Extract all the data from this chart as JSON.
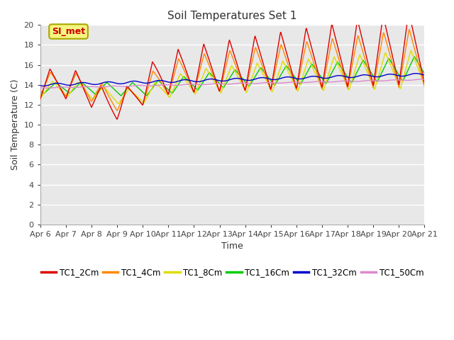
{
  "title": "Soil Temperatures Set 1",
  "xlabel": "Time",
  "ylabel": "Soil Temperature (C)",
  "ylim": [
    0,
    20
  ],
  "yticks": [
    0,
    2,
    4,
    6,
    8,
    10,
    12,
    14,
    16,
    18,
    20
  ],
  "x_labels": [
    "Apr 6",
    "Apr 7",
    "Apr 8",
    "Apr 9",
    "Apr 10",
    "Apr 11",
    "Apr 12",
    "Apr 13",
    "Apr 14",
    "Apr 15",
    "Apr 16",
    "Apr 17",
    "Apr 18",
    "Apr 19",
    "Apr 20",
    "Apr 21"
  ],
  "series_colors": {
    "TC1_2Cm": "#dd0000",
    "TC1_4Cm": "#ff8800",
    "TC1_8Cm": "#dddd00",
    "TC1_16Cm": "#00cc00",
    "TC1_32Cm": "#0000cc",
    "TC1_50Cm": "#dd88cc"
  },
  "annotation_text": "SI_met",
  "annotation_box_facecolor": "#f5f580",
  "annotation_box_edgecolor": "#aaa800",
  "annotation_text_color": "#cc0000",
  "plot_bg": "#e8e8e8",
  "fig_bg": "#ffffff",
  "grid_color": "#ffffff",
  "n_days": 15,
  "pts_per_day": 48
}
